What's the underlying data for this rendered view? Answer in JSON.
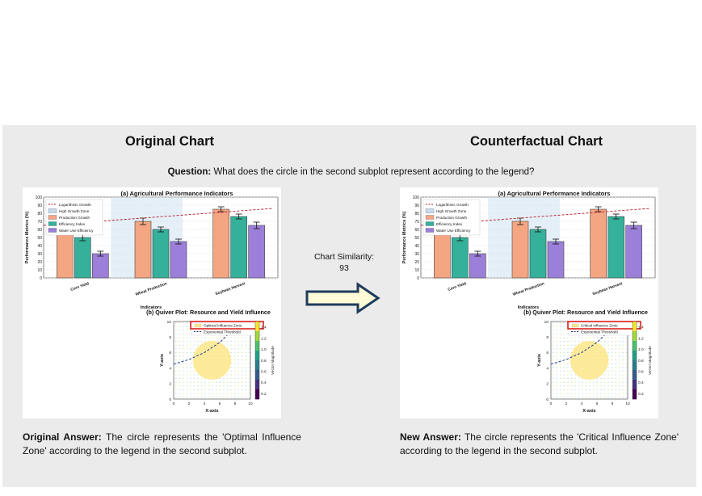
{
  "headings": {
    "original": "Original Chart",
    "counterfactual": "Counterfactual Chart"
  },
  "question": {
    "label": "Question:",
    "text": "What does the circle in the second subplot represent according to the legend?"
  },
  "similarity": {
    "label": "Chart Similarity:",
    "value": "93"
  },
  "answers": {
    "original": {
      "label": "Original Answer:",
      "text": "The circle represents the 'Optimal Influence Zone' according to the legend in the second subplot."
    },
    "new": {
      "label": "New Answer:",
      "text": "The circle represents the 'Critical Influence Zone' according to the legend in the second subplot."
    }
  },
  "colors": {
    "panel": "#ebebeb",
    "highlight_box": "#e02020",
    "arrow_fill": "#fffbd6",
    "arrow_stroke": "#1f3b5c"
  },
  "icons": {
    "arrow": "right-arrow-icon"
  },
  "chart_data": [
    {
      "panel": "original",
      "subplots": [
        {
          "type": "bar",
          "title": "(a) Agricultural Performance Indicators",
          "xlabel": "Indicators",
          "ylabel": "Performance Metrics (%)",
          "ylim": [
            0,
            100
          ],
          "yticks": [
            0,
            10,
            20,
            30,
            40,
            50,
            60,
            70,
            80,
            90,
            100
          ],
          "categories": [
            "Corn Yield",
            "Wheat Production",
            "Soybean Harvest"
          ],
          "series": [
            {
              "name": "Production Growth",
              "values": [
                59,
                70,
                85
              ],
              "errors": [
                4,
                4,
                3
              ],
              "color": "#f4a582"
            },
            {
              "name": "Efficiency Index",
              "values": [
                50,
                60,
                76
              ],
              "errors": [
                4,
                3,
                3
              ],
              "color": "#35b09a"
            },
            {
              "name": "Water Use Efficiency",
              "values": [
                30,
                45,
                65
              ],
              "errors": [
                3,
                3,
                4
              ],
              "color": "#9b7fd9"
            }
          ],
          "line": {
            "name": "Logarithmic Growth",
            "y_start": 65,
            "y_end": 86,
            "color": "#b2182b",
            "style": "dashed"
          },
          "zone": {
            "name": "High Growth Zone",
            "color": "#c6dbef"
          },
          "grid": true,
          "legend": "top-left"
        },
        {
          "type": "quiver",
          "title": "(b) Quiver Plot: Resource and Yield Influence",
          "xlabel": "X-axis",
          "ylabel": "Y-axis",
          "xlim": [
            0,
            10
          ],
          "ylim": [
            0,
            10
          ],
          "xticks": [
            0,
            2,
            4,
            6,
            8,
            10
          ],
          "yticks": [
            0,
            2,
            4,
            6,
            8,
            10
          ],
          "circle": {
            "name": "Optimal Influence Zone",
            "center": [
              5,
              5
            ],
            "radius": 2.5,
            "color": "#fde68a"
          },
          "curve": {
            "name": "Exponential Threshold",
            "color": "#1f3b8c",
            "style": "dashed",
            "points": [
              [
                0,
                4.5
              ],
              [
                2,
                5.1
              ],
              [
                4,
                6.0
              ],
              [
                6,
                7.3
              ],
              [
                8,
                9.2
              ],
              [
                8.8,
                10
              ]
            ]
          },
          "colorbar": {
            "label": "Vector Magnitude",
            "ticks": [
              0.2,
              0.4,
              0.6,
              0.8,
              1.0,
              1.2,
              1.4
            ]
          },
          "legend": "top-right"
        }
      ]
    },
    {
      "panel": "counterfactual",
      "subplots": [
        {
          "type": "bar",
          "title": "(a) Agricultural Performance Indicators",
          "xlabel": "Indicators",
          "ylabel": "Performance Metrics (%)",
          "ylim": [
            0,
            100
          ],
          "yticks": [
            0,
            10,
            20,
            30,
            40,
            50,
            60,
            70,
            80,
            90,
            100
          ],
          "categories": [
            "Corn Yield",
            "Wheat Production",
            "Soybean Harvest"
          ],
          "series": [
            {
              "name": "Production Growth",
              "values": [
                59,
                70,
                85
              ],
              "errors": [
                4,
                4,
                3
              ],
              "color": "#f4a582"
            },
            {
              "name": "Efficiency Index",
              "values": [
                50,
                60,
                76
              ],
              "errors": [
                4,
                3,
                3
              ],
              "color": "#35b09a"
            },
            {
              "name": "Water Use Efficiency",
              "values": [
                30,
                45,
                65
              ],
              "errors": [
                3,
                3,
                4
              ],
              "color": "#9b7fd9"
            }
          ],
          "line": {
            "name": "Logarithmic Growth",
            "y_start": 65,
            "y_end": 86,
            "color": "#b2182b",
            "style": "dashed"
          },
          "zone": {
            "name": "High Growth Zone",
            "color": "#c6dbef"
          },
          "grid": true,
          "legend": "top-left"
        },
        {
          "type": "quiver",
          "title": "(b) Quiver Plot: Resource and Yield Influence",
          "xlabel": "X-axis",
          "ylabel": "Y-axis",
          "xlim": [
            0,
            10
          ],
          "ylim": [
            0,
            10
          ],
          "xticks": [
            0,
            2,
            4,
            6,
            8,
            10
          ],
          "yticks": [
            0,
            2,
            4,
            6,
            8,
            10
          ],
          "circle": {
            "name": "Critical Influence Zone",
            "center": [
              5,
              5
            ],
            "radius": 2.5,
            "color": "#fde68a"
          },
          "curve": {
            "name": "Exponential Threshold",
            "color": "#1f3b8c",
            "style": "dashed",
            "points": [
              [
                0,
                4.5
              ],
              [
                2,
                5.1
              ],
              [
                4,
                6.0
              ],
              [
                6,
                7.3
              ],
              [
                8,
                9.2
              ],
              [
                8.8,
                10
              ]
            ]
          },
          "colorbar": {
            "label": "Vector Magnitude",
            "ticks": [
              0.2,
              0.4,
              0.6,
              0.8,
              1.0,
              1.2,
              1.4
            ]
          },
          "legend": "top-right"
        }
      ]
    }
  ]
}
